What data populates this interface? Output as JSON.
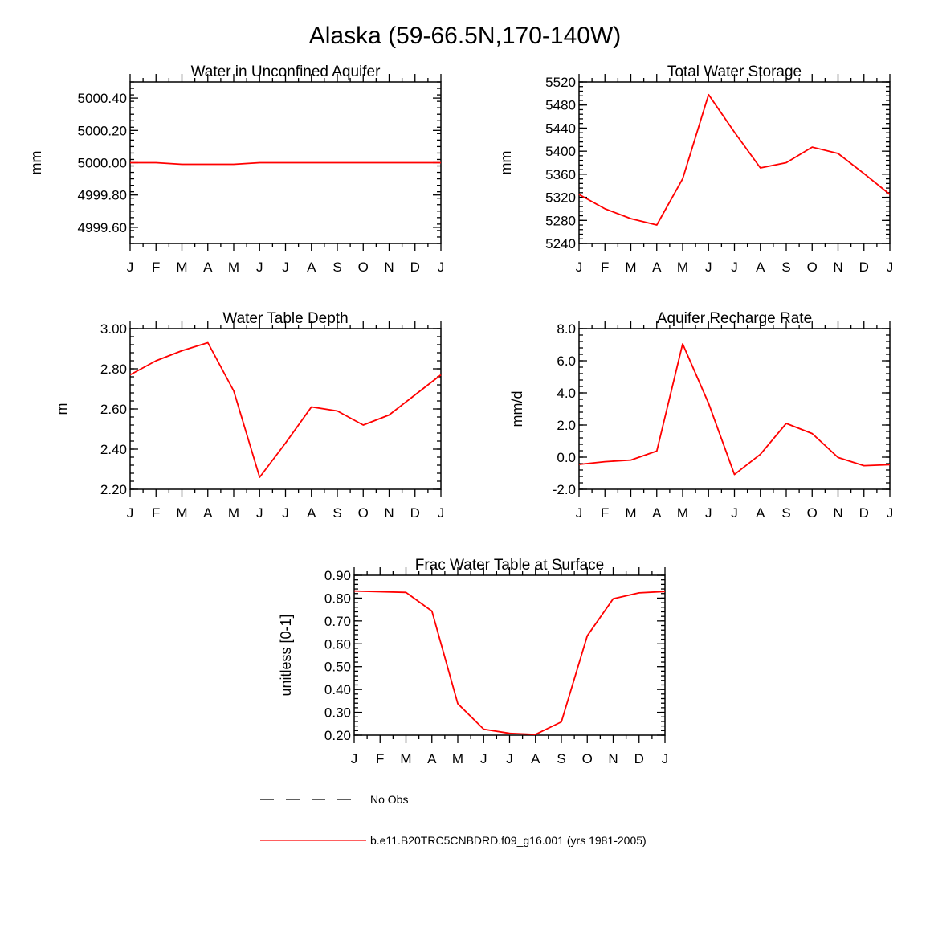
{
  "figure_title": "Alaska (59-66.5N,170-140W)",
  "months": [
    "J",
    "F",
    "M",
    "A",
    "M",
    "J",
    "J",
    "A",
    "S",
    "O",
    "N",
    "D",
    "J"
  ],
  "colors": {
    "series": "#ff0000",
    "axes": "#000000",
    "obs": "#000000"
  },
  "legend": {
    "obs_label": "No Obs",
    "model_label": "b.e11.B20TRC5CNBDRD.f09_g16.001 (yrs 1981-2005)"
  },
  "chart_data": [
    {
      "type": "line",
      "title": "Water in Unconfined Aquifer",
      "ylabel": "mm",
      "ylim": [
        4999.5,
        5000.5
      ],
      "yticks": [
        4999.6,
        4999.8,
        5000.0,
        5000.2,
        5000.4
      ],
      "yticklabels": [
        "4999.60",
        "4999.80",
        "5000.00",
        "5000.20",
        "5000.40"
      ],
      "yminor": 0.04,
      "categories": [
        "J",
        "F",
        "M",
        "A",
        "M",
        "J",
        "J",
        "A",
        "S",
        "O",
        "N",
        "D",
        "J"
      ],
      "series": [
        {
          "values": [
            5000.0,
            5000.0,
            4999.99,
            4999.99,
            4999.99,
            5000.0,
            5000.0,
            5000.0,
            5000.0,
            5000.0,
            5000.0,
            5000.0,
            5000.0
          ]
        }
      ],
      "grid": false
    },
    {
      "type": "line",
      "title": "Total Water Storage",
      "ylabel": "mm",
      "ylim": [
        5240,
        5520
      ],
      "yticks": [
        5240,
        5280,
        5320,
        5360,
        5400,
        5440,
        5480,
        5520
      ],
      "yticklabels": [
        "5240",
        "5280",
        "5320",
        "5360",
        "5400",
        "5440",
        "5480",
        "5520"
      ],
      "yminor": 8,
      "categories": [
        "J",
        "F",
        "M",
        "A",
        "M",
        "J",
        "J",
        "A",
        "S",
        "O",
        "N",
        "D",
        "J"
      ],
      "series": [
        {
          "values": [
            5325,
            5300,
            5283,
            5272,
            5352,
            5498,
            5433,
            5371,
            5380,
            5407,
            5396,
            5361,
            5325
          ]
        }
      ],
      "grid": false
    },
    {
      "type": "line",
      "title": "Water Table Depth",
      "ylabel": "m",
      "ylim": [
        2.2,
        3.0
      ],
      "yticks": [
        2.2,
        2.4,
        2.6,
        2.8,
        3.0
      ],
      "yticklabels": [
        "2.20",
        "2.40",
        "2.60",
        "2.80",
        "3.00"
      ],
      "yminor": 0.04,
      "categories": [
        "J",
        "F",
        "M",
        "A",
        "M",
        "J",
        "J",
        "A",
        "S",
        "O",
        "N",
        "D",
        "J"
      ],
      "series": [
        {
          "values": [
            2.77,
            2.84,
            2.89,
            2.93,
            2.69,
            2.26,
            2.43,
            2.61,
            2.59,
            2.52,
            2.57,
            2.67,
            2.77
          ]
        }
      ],
      "grid": false
    },
    {
      "type": "line",
      "title": "Aquifer Recharge Rate",
      "ylabel": "mm/d",
      "ylim": [
        -2.0,
        8.0
      ],
      "yticks": [
        -2.0,
        0.0,
        2.0,
        4.0,
        6.0,
        8.0
      ],
      "yticklabels": [
        "-2.0",
        "0.0",
        "2.0",
        "4.0",
        "6.0",
        "8.0"
      ],
      "yminor": 0.4,
      "categories": [
        "J",
        "F",
        "M",
        "A",
        "M",
        "J",
        "J",
        "A",
        "S",
        "O",
        "N",
        "D",
        "J"
      ],
      "series": [
        {
          "values": [
            -0.45,
            -0.28,
            -0.18,
            0.38,
            7.05,
            3.35,
            -1.08,
            0.18,
            2.1,
            1.47,
            -0.02,
            -0.53,
            -0.47
          ]
        }
      ],
      "grid": false
    },
    {
      "type": "line",
      "title": "Frac Water Table at Surface",
      "ylabel": "unitless [0-1]",
      "ylim": [
        0.2,
        0.9
      ],
      "yticks": [
        0.2,
        0.3,
        0.4,
        0.5,
        0.6,
        0.7,
        0.8,
        0.9
      ],
      "yticklabels": [
        "0.20",
        "0.30",
        "0.40",
        "0.50",
        "0.60",
        "0.70",
        "0.80",
        "0.90"
      ],
      "yminor": 0.02,
      "categories": [
        "J",
        "F",
        "M",
        "A",
        "M",
        "J",
        "J",
        "A",
        "S",
        "O",
        "N",
        "D",
        "J"
      ],
      "series": [
        {
          "values": [
            0.831,
            0.828,
            0.825,
            0.743,
            0.338,
            0.226,
            0.208,
            0.203,
            0.258,
            0.635,
            0.797,
            0.823,
            0.829
          ]
        }
      ],
      "grid": false
    }
  ]
}
